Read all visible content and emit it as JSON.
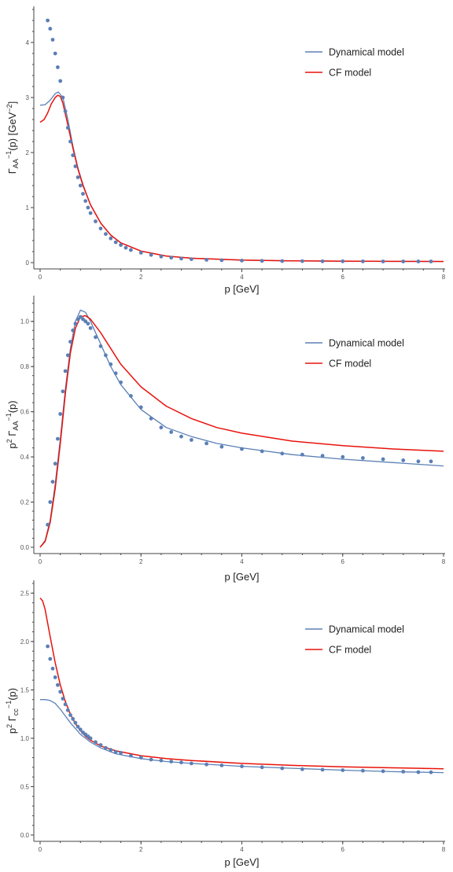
{
  "colors": {
    "dynamical": "#5b80b6",
    "cf": "#e8130b",
    "points": "#5b7fb5",
    "axis": "#444444"
  },
  "chart_data": [
    {
      "type": "line",
      "xlabel": "p [GeV]",
      "ylabel": "Γ_AA^{-1}(p) [GeV^{-2}]",
      "ylabel_parts": {
        "main": "Γ",
        "sub": "AA",
        "sup1": "−1",
        "rest": "(p) [GeV",
        "sup2": "−2",
        "end": "]"
      },
      "xlim": [
        0,
        8
      ],
      "ylim": [
        0,
        4.6
      ],
      "xticks": [
        0,
        2,
        4,
        6,
        8
      ],
      "yticks": [
        0,
        1,
        2,
        3,
        4
      ],
      "legend_position": "top-right",
      "series": [
        {
          "name": "Dynamical model",
          "kind": "line",
          "colorKey": "dynamical",
          "x": [
            0,
            0.1,
            0.2,
            0.3,
            0.36,
            0.45,
            0.55,
            0.65,
            0.75,
            0.85,
            1.0,
            1.2,
            1.4,
            1.6,
            2.0,
            2.5,
            3.0,
            4.0,
            5.0,
            6.0,
            7.0,
            8.0
          ],
          "y": [
            2.86,
            2.87,
            2.95,
            3.07,
            3.1,
            3.0,
            2.6,
            2.12,
            1.72,
            1.42,
            1.05,
            0.72,
            0.5,
            0.36,
            0.21,
            0.12,
            0.08,
            0.045,
            0.032,
            0.026,
            0.022,
            0.02
          ]
        },
        {
          "name": "CF model",
          "kind": "line",
          "colorKey": "cf",
          "x": [
            0,
            0.08,
            0.15,
            0.22,
            0.3,
            0.35,
            0.4,
            0.45,
            0.55,
            0.65,
            0.75,
            0.85,
            1.0,
            1.2,
            1.4,
            1.6,
            2.0,
            2.5,
            3.0,
            4.0,
            5.0,
            6.0,
            7.0,
            8.0
          ],
          "y": [
            2.55,
            2.6,
            2.72,
            2.88,
            3.0,
            3.04,
            3.02,
            2.9,
            2.5,
            2.08,
            1.7,
            1.4,
            1.05,
            0.72,
            0.5,
            0.36,
            0.21,
            0.12,
            0.08,
            0.046,
            0.033,
            0.027,
            0.023,
            0.021
          ]
        },
        {
          "name": "",
          "kind": "points",
          "colorKey": "points",
          "x": [
            0.15,
            0.2,
            0.25,
            0.3,
            0.35,
            0.4,
            0.45,
            0.5,
            0.55,
            0.6,
            0.65,
            0.7,
            0.75,
            0.8,
            0.85,
            0.9,
            0.95,
            1.0,
            1.1,
            1.2,
            1.3,
            1.4,
            1.5,
            1.6,
            1.7,
            1.8,
            2.0,
            2.2,
            2.4,
            2.6,
            2.8,
            3.0,
            3.3,
            3.6,
            4.0,
            4.4,
            4.8,
            5.2,
            5.6,
            6.0,
            6.4,
            6.8,
            7.2,
            7.5,
            7.75
          ],
          "y": [
            4.4,
            4.25,
            4.05,
            3.8,
            3.55,
            3.3,
            3.0,
            2.75,
            2.45,
            2.2,
            1.95,
            1.75,
            1.55,
            1.4,
            1.25,
            1.12,
            1.0,
            0.9,
            0.75,
            0.62,
            0.52,
            0.44,
            0.37,
            0.32,
            0.27,
            0.23,
            0.18,
            0.14,
            0.11,
            0.09,
            0.075,
            0.063,
            0.052,
            0.044,
            0.037,
            0.032,
            0.029,
            0.027,
            0.025,
            0.024,
            0.023,
            0.022,
            0.022,
            0.021,
            0.021
          ]
        }
      ]
    },
    {
      "type": "line",
      "xlabel": "p [GeV]",
      "ylabel": "p² Γ_AA^{-1}(p)",
      "ylabel_parts": {
        "pre": "p",
        "presup": "2",
        "main": " Γ",
        "sub": "AA",
        "sup1": "−1",
        "rest": "(p)"
      },
      "xlim": [
        0,
        8
      ],
      "ylim": [
        0,
        1.1
      ],
      "xticks": [
        0,
        2,
        4,
        6,
        8
      ],
      "yticks": [
        0.0,
        0.2,
        0.4,
        0.6,
        0.8,
        1.0
      ],
      "legend_position": "top-right",
      "series": [
        {
          "name": "Dynamical model",
          "kind": "line",
          "colorKey": "dynamical",
          "x": [
            0,
            0.1,
            0.2,
            0.3,
            0.4,
            0.5,
            0.6,
            0.7,
            0.8,
            0.9,
            1.0,
            1.2,
            1.4,
            1.6,
            2.0,
            2.5,
            3.0,
            3.5,
            4.0,
            5.0,
            6.0,
            7.0,
            8.0
          ],
          "y": [
            0.0,
            0.03,
            0.12,
            0.28,
            0.48,
            0.7,
            0.88,
            1.0,
            1.05,
            1.04,
            1.0,
            0.9,
            0.8,
            0.72,
            0.61,
            0.53,
            0.49,
            0.46,
            0.44,
            0.41,
            0.39,
            0.375,
            0.36
          ]
        },
        {
          "name": "CF model",
          "kind": "line",
          "colorKey": "cf",
          "x": [
            0,
            0.1,
            0.2,
            0.3,
            0.4,
            0.5,
            0.6,
            0.7,
            0.8,
            0.9,
            1.0,
            1.2,
            1.4,
            1.6,
            2.0,
            2.5,
            3.0,
            3.5,
            4.0,
            5.0,
            6.0,
            7.0,
            8.0
          ],
          "y": [
            0.0,
            0.026,
            0.11,
            0.26,
            0.46,
            0.68,
            0.86,
            0.97,
            1.02,
            1.025,
            1.01,
            0.95,
            0.88,
            0.81,
            0.71,
            0.625,
            0.57,
            0.53,
            0.505,
            0.47,
            0.45,
            0.435,
            0.425
          ]
        },
        {
          "name": "",
          "kind": "points",
          "colorKey": "points",
          "x": [
            0.15,
            0.2,
            0.25,
            0.3,
            0.35,
            0.4,
            0.45,
            0.5,
            0.55,
            0.6,
            0.65,
            0.7,
            0.75,
            0.8,
            0.85,
            0.9,
            0.95,
            1.0,
            1.1,
            1.2,
            1.3,
            1.4,
            1.5,
            1.6,
            1.8,
            2.0,
            2.2,
            2.4,
            2.6,
            2.8,
            3.0,
            3.3,
            3.6,
            4.0,
            4.4,
            4.8,
            5.2,
            5.6,
            6.0,
            6.4,
            6.8,
            7.2,
            7.5,
            7.75
          ],
          "y": [
            0.1,
            0.2,
            0.29,
            0.37,
            0.48,
            0.59,
            0.69,
            0.78,
            0.85,
            0.91,
            0.96,
            0.99,
            1.01,
            1.02,
            1.01,
            1.0,
            0.99,
            0.97,
            0.93,
            0.89,
            0.85,
            0.81,
            0.77,
            0.73,
            0.67,
            0.62,
            0.57,
            0.53,
            0.51,
            0.49,
            0.475,
            0.46,
            0.445,
            0.435,
            0.425,
            0.415,
            0.41,
            0.405,
            0.4,
            0.395,
            0.39,
            0.385,
            0.38,
            0.38
          ]
        }
      ]
    },
    {
      "type": "line",
      "xlabel": "p [GeV]",
      "ylabel": "p² Γ_cc^{-1}(p)",
      "ylabel_parts": {
        "pre": "p",
        "presup": "2",
        "main": " Γ",
        "sub": "cc",
        "sup1": "−1",
        "rest": "(p)"
      },
      "xlim": [
        0,
        8
      ],
      "ylim": [
        0,
        2.6
      ],
      "xticks": [
        0,
        2,
        4,
        6,
        8
      ],
      "yticks": [
        0.0,
        0.5,
        1.0,
        1.5,
        2.0,
        2.5
      ],
      "legend_position": "top-right",
      "series": [
        {
          "name": "Dynamical model",
          "kind": "line",
          "colorKey": "dynamical",
          "x": [
            0,
            0.1,
            0.2,
            0.3,
            0.4,
            0.5,
            0.6,
            0.7,
            0.8,
            0.9,
            1.0,
            1.2,
            1.5,
            2.0,
            2.5,
            3.0,
            4.0,
            5.0,
            6.0,
            7.0,
            8.0
          ],
          "y": [
            1.4,
            1.4,
            1.39,
            1.36,
            1.3,
            1.23,
            1.16,
            1.1,
            1.04,
            1.0,
            0.96,
            0.9,
            0.84,
            0.79,
            0.76,
            0.74,
            0.71,
            0.69,
            0.67,
            0.655,
            0.645
          ]
        },
        {
          "name": "CF model",
          "kind": "line",
          "colorKey": "cf",
          "x": [
            0,
            0.05,
            0.1,
            0.2,
            0.3,
            0.4,
            0.5,
            0.6,
            0.7,
            0.8,
            0.9,
            1.0,
            1.2,
            1.5,
            2.0,
            2.5,
            3.0,
            4.0,
            5.0,
            6.0,
            7.0,
            8.0
          ],
          "y": [
            2.45,
            2.42,
            2.33,
            2.05,
            1.78,
            1.55,
            1.38,
            1.25,
            1.15,
            1.08,
            1.02,
            0.98,
            0.92,
            0.87,
            0.82,
            0.79,
            0.77,
            0.74,
            0.72,
            0.705,
            0.695,
            0.685
          ]
        },
        {
          "name": "",
          "kind": "points",
          "colorKey": "points",
          "x": [
            0.15,
            0.2,
            0.25,
            0.3,
            0.35,
            0.4,
            0.45,
            0.5,
            0.55,
            0.6,
            0.65,
            0.7,
            0.75,
            0.8,
            0.85,
            0.9,
            0.95,
            1.0,
            1.1,
            1.2,
            1.3,
            1.4,
            1.5,
            1.6,
            1.8,
            2.0,
            2.2,
            2.4,
            2.6,
            2.8,
            3.0,
            3.3,
            3.6,
            4.0,
            4.4,
            4.8,
            5.2,
            5.6,
            6.0,
            6.4,
            6.8,
            7.2,
            7.5,
            7.75
          ],
          "y": [
            1.95,
            1.82,
            1.72,
            1.63,
            1.55,
            1.48,
            1.41,
            1.35,
            1.29,
            1.24,
            1.2,
            1.16,
            1.12,
            1.09,
            1.06,
            1.04,
            1.02,
            1.0,
            0.96,
            0.93,
            0.9,
            0.88,
            0.86,
            0.85,
            0.82,
            0.8,
            0.78,
            0.77,
            0.76,
            0.75,
            0.74,
            0.73,
            0.72,
            0.71,
            0.7,
            0.69,
            0.68,
            0.675,
            0.67,
            0.665,
            0.66,
            0.655,
            0.65,
            0.648
          ]
        }
      ]
    }
  ]
}
